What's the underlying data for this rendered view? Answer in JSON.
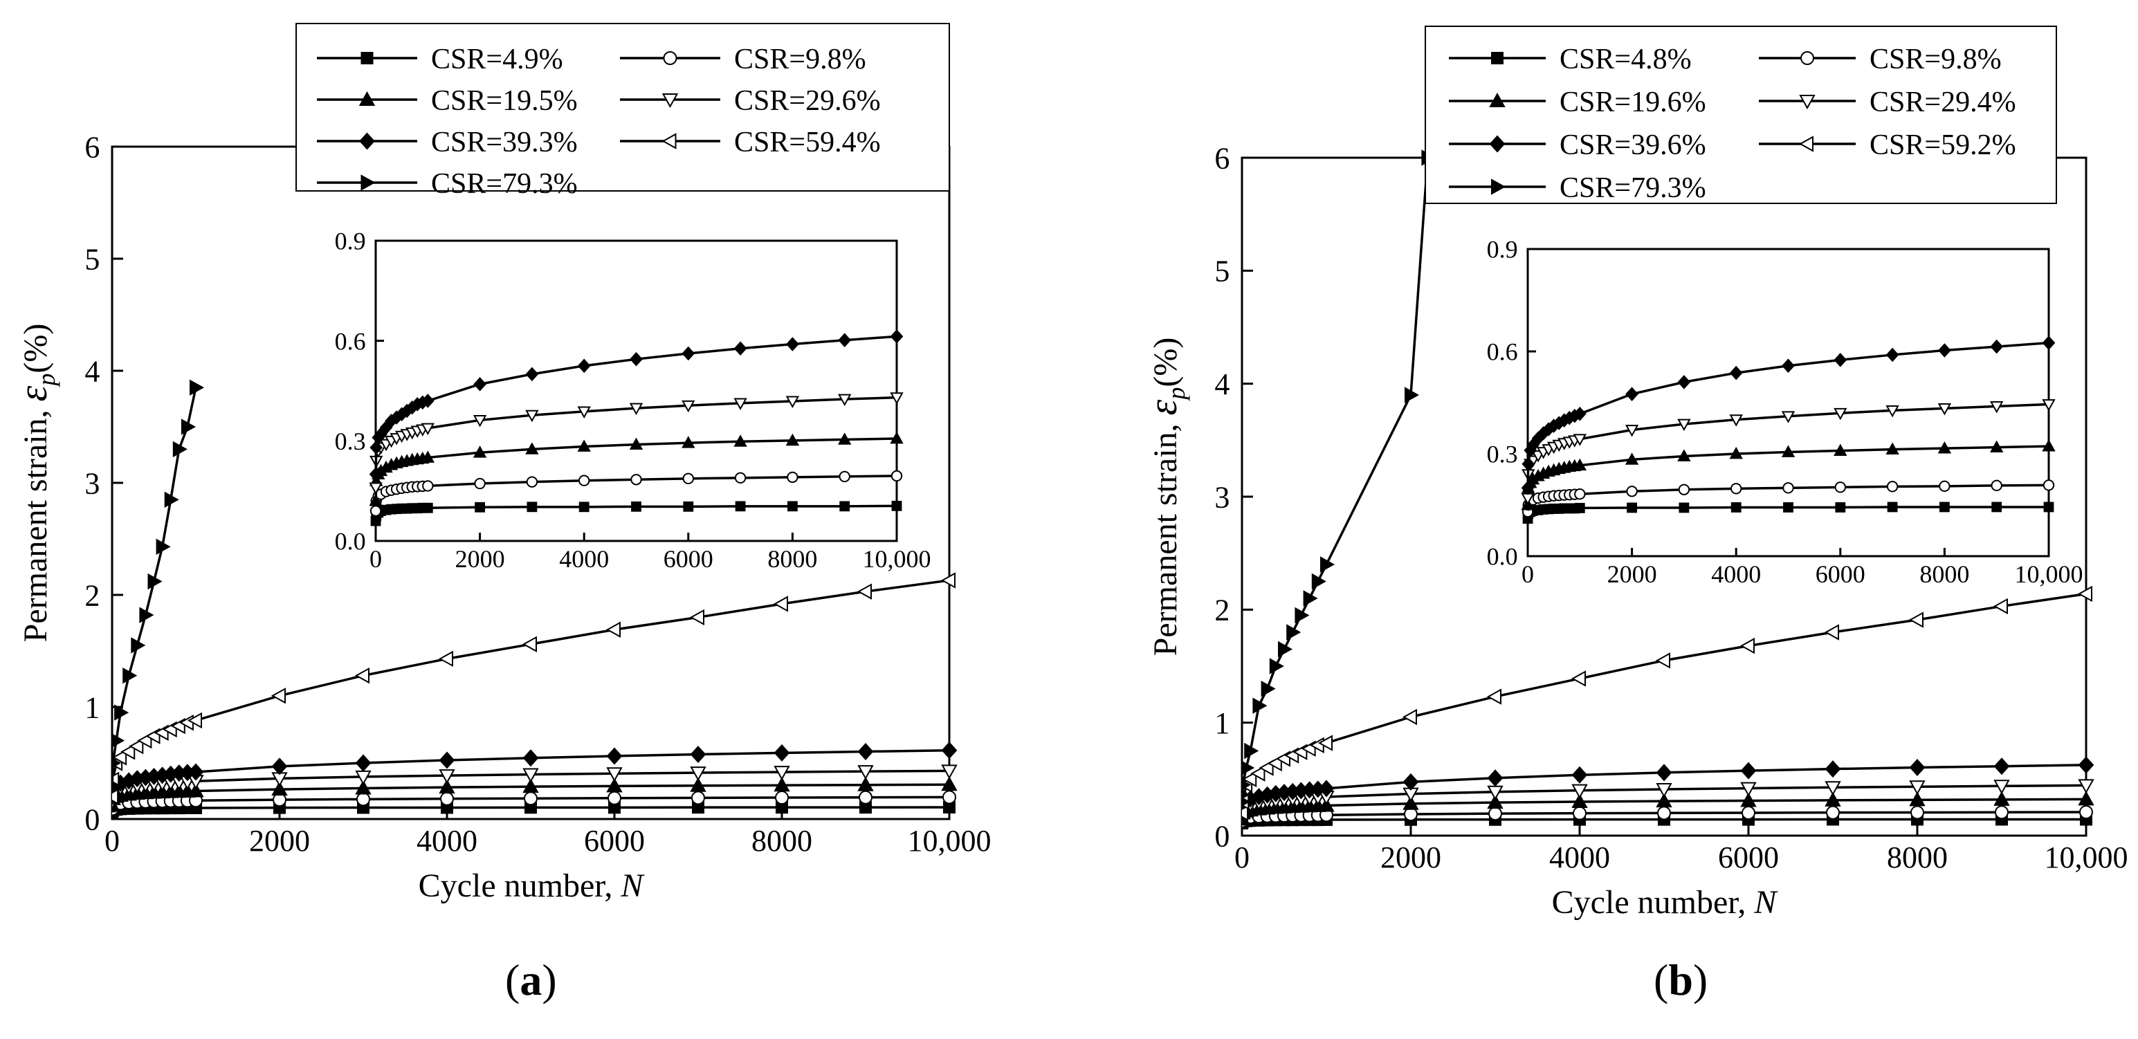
{
  "chart_data": [
    {
      "type": "line",
      "panel": "(a)",
      "panel_letter": "a",
      "xlabel": "Cycle number, ",
      "xlabel_italic": "N",
      "ylabel": "Permanent strain, ",
      "ylabel_symbol": "ε",
      "ylabel_sub": "p",
      "ylabel_unit": "(%)",
      "xlim": [
        0,
        10000
      ],
      "ylim": [
        0,
        6
      ],
      "xticks": [
        0,
        2000,
        4000,
        6000,
        8000,
        10000
      ],
      "xtick_labels": [
        "0",
        "2000",
        "4000",
        "6000",
        "8000",
        "10,000"
      ],
      "yticks": [
        0,
        1,
        2,
        3,
        4,
        5,
        6
      ],
      "ytick_labels": [
        "0",
        "1",
        "2",
        "3",
        "4",
        "5",
        "6"
      ],
      "inset": {
        "xlim": [
          0,
          10000
        ],
        "ylim": [
          0,
          0.9
        ],
        "xticks": [
          0,
          2000,
          4000,
          6000,
          8000,
          10000
        ],
        "xtick_labels": [
          "0",
          "2000",
          "4000",
          "6000",
          "8000",
          "10,000"
        ],
        "yticks": [
          0,
          0.3,
          0.6,
          0.9
        ],
        "ytick_labels": [
          "0.0",
          "0.3",
          "0.6",
          "0.9"
        ]
      },
      "legend": {
        "placement": "top-center"
      },
      "series": [
        {
          "name": "CSR=4.9%",
          "marker": "square",
          "x": [
            1,
            10,
            50,
            100,
            200,
            300,
            400,
            500,
            600,
            700,
            800,
            900,
            1000,
            2000,
            3000,
            4000,
            5000,
            6000,
            7000,
            8000,
            9000,
            10000
          ],
          "values": [
            0.06,
            0.075,
            0.085,
            0.09,
            0.093,
            0.095,
            0.096,
            0.097,
            0.097,
            0.098,
            0.098,
            0.099,
            0.099,
            0.101,
            0.102,
            0.102,
            0.103,
            0.103,
            0.104,
            0.104,
            0.104,
            0.105
          ]
        },
        {
          "name": "CSR=9.8%",
          "marker": "circle",
          "x": [
            1,
            10,
            50,
            100,
            200,
            300,
            400,
            500,
            600,
            700,
            800,
            900,
            1000,
            2000,
            3000,
            4000,
            5000,
            6000,
            7000,
            8000,
            9000,
            10000
          ],
          "values": [
            0.09,
            0.12,
            0.135,
            0.14,
            0.148,
            0.152,
            0.155,
            0.158,
            0.16,
            0.162,
            0.163,
            0.164,
            0.165,
            0.172,
            0.177,
            0.181,
            0.184,
            0.187,
            0.189,
            0.191,
            0.193,
            0.195
          ]
        },
        {
          "name": "CSR=19.5%",
          "marker": "triangle-up",
          "x": [
            1,
            10,
            50,
            100,
            200,
            300,
            400,
            500,
            600,
            700,
            800,
            900,
            1000,
            2000,
            3000,
            4000,
            5000,
            6000,
            7000,
            8000,
            9000,
            10000
          ],
          "values": [
            0.12,
            0.18,
            0.2,
            0.21,
            0.22,
            0.228,
            0.233,
            0.237,
            0.24,
            0.243,
            0.245,
            0.247,
            0.25,
            0.265,
            0.275,
            0.283,
            0.289,
            0.294,
            0.298,
            0.301,
            0.304,
            0.307
          ]
        },
        {
          "name": "CSR=29.6%",
          "marker": "triangle-down",
          "x": [
            1,
            10,
            50,
            100,
            200,
            300,
            400,
            500,
            600,
            700,
            800,
            900,
            1000,
            2000,
            3000,
            4000,
            5000,
            6000,
            7000,
            8000,
            9000,
            10000
          ],
          "values": [
            0.16,
            0.24,
            0.27,
            0.28,
            0.29,
            0.3,
            0.308,
            0.315,
            0.32,
            0.325,
            0.33,
            0.334,
            0.338,
            0.362,
            0.377,
            0.388,
            0.398,
            0.406,
            0.413,
            0.419,
            0.425,
            0.43
          ]
        },
        {
          "name": "CSR=39.3%",
          "marker": "diamond",
          "x": [
            1,
            10,
            50,
            100,
            200,
            300,
            400,
            500,
            600,
            700,
            800,
            900,
            1000,
            2000,
            3000,
            4000,
            5000,
            6000,
            7000,
            8000,
            9000,
            10000
          ],
          "values": [
            0.2,
            0.28,
            0.31,
            0.32,
            0.34,
            0.36,
            0.37,
            0.38,
            0.39,
            0.4,
            0.41,
            0.415,
            0.42,
            0.47,
            0.5,
            0.525,
            0.545,
            0.562,
            0.577,
            0.59,
            0.602,
            0.613
          ]
        },
        {
          "name": "CSR=59.4%",
          "marker": "triangle-left",
          "x": [
            1,
            10,
            50,
            100,
            200,
            300,
            400,
            500,
            600,
            700,
            800,
            900,
            1000,
            2000,
            3000,
            4000,
            5000,
            6000,
            7000,
            8000,
            9000,
            10000
          ],
          "values": [
            0.2,
            0.35,
            0.5,
            0.55,
            0.6,
            0.65,
            0.7,
            0.74,
            0.77,
            0.8,
            0.83,
            0.86,
            0.88,
            1.1,
            1.28,
            1.43,
            1.56,
            1.69,
            1.8,
            1.92,
            2.03,
            2.13
          ]
        },
        {
          "name": "CSR=79.3%",
          "marker": "triangle-right",
          "x": [
            1,
            10,
            50,
            100,
            200,
            300,
            400,
            500,
            600,
            700,
            800,
            900,
            1000
          ],
          "values": [
            0.3,
            0.5,
            0.7,
            0.95,
            1.28,
            1.55,
            1.82,
            2.12,
            2.43,
            2.85,
            3.3,
            3.5,
            3.85
          ]
        }
      ]
    },
    {
      "type": "line",
      "panel": "(b)",
      "panel_letter": "b",
      "xlabel": "Cycle number, ",
      "xlabel_italic": "N",
      "ylabel": "Permanent strain, ",
      "ylabel_symbol": "ε",
      "ylabel_sub": "p",
      "ylabel_unit": "(%)",
      "xlim": [
        0,
        10000
      ],
      "ylim": [
        0,
        6
      ],
      "xticks": [
        0,
        2000,
        4000,
        6000,
        8000,
        10000
      ],
      "xtick_labels": [
        "0",
        "2000",
        "4000",
        "6000",
        "8000",
        "10,000"
      ],
      "yticks": [
        0,
        1,
        2,
        3,
        4,
        5,
        6
      ],
      "ytick_labels": [
        "0",
        "1",
        "2",
        "3",
        "4",
        "5",
        "6"
      ],
      "inset": {
        "xlim": [
          0,
          10000
        ],
        "ylim": [
          0,
          0.9
        ],
        "xticks": [
          0,
          2000,
          4000,
          6000,
          8000,
          10000
        ],
        "xtick_labels": [
          "0",
          "2000",
          "4000",
          "6000",
          "8000",
          "10,000"
        ],
        "yticks": [
          0,
          0.3,
          0.6,
          0.9
        ],
        "ytick_labels": [
          "0.0",
          "0.3",
          "0.6",
          "0.9"
        ]
      },
      "legend": {
        "placement": "top-center"
      },
      "series": [
        {
          "name": "CSR=4.8%",
          "marker": "square",
          "x": [
            1,
            10,
            50,
            100,
            200,
            300,
            400,
            500,
            600,
            700,
            800,
            900,
            1000,
            2000,
            3000,
            4000,
            5000,
            6000,
            7000,
            8000,
            9000,
            10000
          ],
          "values": [
            0.11,
            0.125,
            0.13,
            0.133,
            0.135,
            0.137,
            0.138,
            0.139,
            0.139,
            0.14,
            0.14,
            0.14,
            0.141,
            0.142,
            0.142,
            0.143,
            0.143,
            0.143,
            0.144,
            0.144,
            0.144,
            0.144
          ]
        },
        {
          "name": "CSR=9.8%",
          "marker": "circle",
          "x": [
            1,
            10,
            50,
            100,
            200,
            300,
            400,
            500,
            600,
            700,
            800,
            900,
            1000,
            2000,
            3000,
            4000,
            5000,
            6000,
            7000,
            8000,
            9000,
            10000
          ],
          "values": [
            0.13,
            0.15,
            0.16,
            0.165,
            0.17,
            0.173,
            0.175,
            0.177,
            0.178,
            0.179,
            0.18,
            0.181,
            0.182,
            0.19,
            0.195,
            0.198,
            0.2,
            0.202,
            0.204,
            0.205,
            0.207,
            0.208
          ]
        },
        {
          "name": "CSR=19.6%",
          "marker": "triangle-up",
          "x": [
            1,
            10,
            50,
            100,
            200,
            300,
            400,
            500,
            600,
            700,
            800,
            900,
            1000,
            2000,
            3000,
            4000,
            5000,
            6000,
            7000,
            8000,
            9000,
            10000
          ],
          "values": [
            0.15,
            0.2,
            0.215,
            0.225,
            0.235,
            0.242,
            0.248,
            0.252,
            0.256,
            0.259,
            0.262,
            0.264,
            0.266,
            0.283,
            0.293,
            0.3,
            0.305,
            0.309,
            0.313,
            0.316,
            0.319,
            0.322
          ]
        },
        {
          "name": "CSR=29.4%",
          "marker": "triangle-down",
          "x": [
            1,
            10,
            50,
            100,
            200,
            300,
            400,
            500,
            600,
            700,
            800,
            900,
            1000,
            2000,
            3000,
            4000,
            5000,
            6000,
            7000,
            8000,
            9000,
            10000
          ],
          "values": [
            0.17,
            0.24,
            0.27,
            0.28,
            0.295,
            0.305,
            0.313,
            0.32,
            0.326,
            0.331,
            0.335,
            0.339,
            0.343,
            0.37,
            0.387,
            0.4,
            0.41,
            0.419,
            0.427,
            0.433,
            0.439,
            0.445
          ]
        },
        {
          "name": "CSR=39.6%",
          "marker": "diamond",
          "x": [
            1,
            10,
            50,
            100,
            200,
            300,
            400,
            500,
            600,
            700,
            800,
            900,
            1000,
            2000,
            3000,
            4000,
            5000,
            6000,
            7000,
            8000,
            9000,
            10000
          ],
          "values": [
            0.2,
            0.27,
            0.31,
            0.325,
            0.345,
            0.36,
            0.372,
            0.382,
            0.39,
            0.398,
            0.405,
            0.411,
            0.417,
            0.475,
            0.51,
            0.537,
            0.558,
            0.575,
            0.59,
            0.603,
            0.614,
            0.625
          ]
        },
        {
          "name": "CSR=59.2%",
          "marker": "triangle-left",
          "x": [
            1,
            10,
            50,
            100,
            200,
            300,
            400,
            500,
            600,
            700,
            800,
            900,
            1000,
            2000,
            3000,
            4000,
            5000,
            6000,
            7000,
            8000,
            9000,
            10000
          ],
          "values": [
            0.2,
            0.3,
            0.45,
            0.5,
            0.55,
            0.6,
            0.64,
            0.68,
            0.71,
            0.74,
            0.77,
            0.8,
            0.82,
            1.05,
            1.23,
            1.39,
            1.55,
            1.68,
            1.8,
            1.91,
            2.03,
            2.14
          ]
        },
        {
          "name": "CSR=79.3%",
          "marker": "triangle-right",
          "x": [
            1,
            10,
            50,
            100,
            200,
            300,
            400,
            500,
            600,
            700,
            800,
            900,
            1000,
            2000,
            2200
          ],
          "values": [
            0.3,
            0.45,
            0.6,
            0.75,
            1.15,
            1.3,
            1.5,
            1.65,
            1.8,
            1.95,
            2.1,
            2.25,
            2.4,
            3.9,
            6.0
          ]
        }
      ]
    }
  ]
}
